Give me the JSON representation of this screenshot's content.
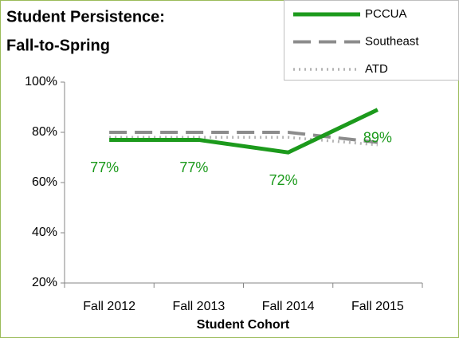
{
  "chart_data": {
    "type": "line",
    "title": [
      "Student Persistence:",
      "Fall-to-Spring"
    ],
    "x_label": "Student Cohort",
    "categories": [
      "Fall 2012",
      "Fall 2013",
      "Fall 2014",
      "Fall 2015"
    ],
    "series": [
      {
        "name": "PCCUA",
        "color": "#1c9a1c",
        "values": [
          77,
          77,
          72,
          89
        ],
        "value_labels": [
          "77%",
          "77%",
          "72%",
          "89%"
        ]
      },
      {
        "name": "Southeast",
        "color": "#8c8c8c",
        "values": [
          80,
          80,
          80,
          76
        ]
      },
      {
        "name": "ATD",
        "color": "#b4b4b4",
        "values": [
          78,
          78,
          78,
          75
        ]
      }
    ],
    "ylim": [
      20,
      100
    ],
    "yticks": [
      {
        "value": 20,
        "label": "20%"
      },
      {
        "value": 40,
        "label": "40%"
      },
      {
        "value": 60,
        "label": "60%"
      },
      {
        "value": 80,
        "label": "80%"
      },
      {
        "value": 100,
        "label": "100%"
      }
    ],
    "legend": "top-right"
  }
}
